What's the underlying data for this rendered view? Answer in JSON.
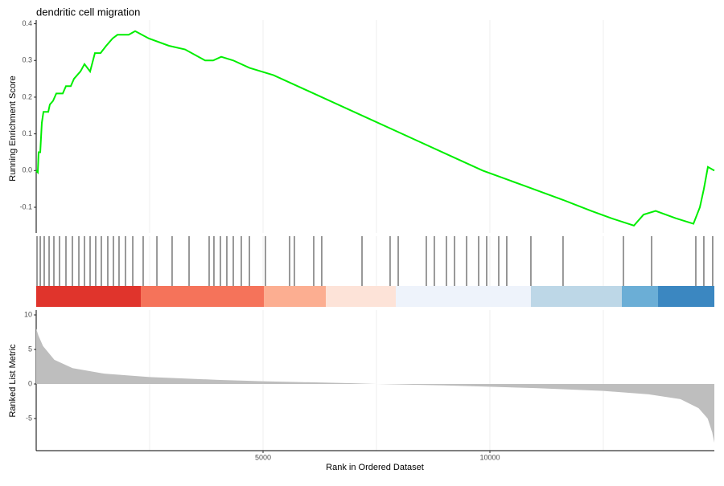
{
  "chart_data": [
    {
      "type": "line",
      "title": "dendritic cell migration",
      "ylabel": "Running Enrichment Score",
      "color": "#00ee00",
      "x": [
        0,
        35,
        53,
        89,
        124,
        160,
        266,
        301,
        372,
        443,
        585,
        656,
        762,
        833,
        975,
        1064,
        1188,
        1294,
        1418,
        1543,
        1684,
        1791,
        2039,
        2181,
        2482,
        2926,
        3280,
        3723,
        3901,
        4078,
        4344,
        4699,
        5230,
        6294,
        7181,
        8067,
        9131,
        9840,
        10727,
        11613,
        12234,
        12677,
        13174,
        13387,
        13653,
        14096,
        14486,
        14628,
        14716,
        14805,
        14947
      ],
      "values": [
        0,
        -0.005,
        0.05,
        0.05,
        0.13,
        0.16,
        0.16,
        0.18,
        0.19,
        0.21,
        0.21,
        0.23,
        0.23,
        0.25,
        0.27,
        0.29,
        0.27,
        0.32,
        0.32,
        0.34,
        0.36,
        0.37,
        0.37,
        0.38,
        0.36,
        0.34,
        0.33,
        0.3,
        0.3,
        0.31,
        0.3,
        0.28,
        0.26,
        0.2,
        0.15,
        0.1,
        0.04,
        0,
        -0.04,
        -0.08,
        -0.11,
        -0.13,
        -0.15,
        -0.12,
        -0.11,
        -0.13,
        -0.145,
        -0.1,
        -0.05,
        0.01,
        0
      ],
      "xlim": [
        0,
        14947
      ],
      "ylim": [
        -0.17,
        0.41
      ],
      "yticks": [
        -0.1,
        {
          "value": 0,
          "label": "0.0"
        },
        0.1,
        0.2,
        0.3,
        0.4
      ],
      "xgrid": [
        2500,
        5000,
        7500,
        10000,
        12500
      ]
    },
    {
      "type": "rug",
      "color": "#000000",
      "hits": [
        18,
        89,
        177,
        284,
        390,
        514,
        656,
        798,
        940,
        1064,
        1188,
        1312,
        1436,
        1578,
        1702,
        1826,
        1968,
        2128,
        2358,
        2660,
        2996,
        3369,
        3812,
        3918,
        4060,
        4202,
        4344,
        4521,
        4699,
        5053,
        5585,
        5691,
        6117,
        6294,
        7181,
        7801,
        7979,
        8599,
        8776,
        9042,
        9220,
        9486,
        9752,
        9929,
        10195,
        10372,
        10904,
        11613,
        12943,
        13564,
        14539,
        14716,
        14911
      ],
      "bands": [
        {
          "start": 0,
          "end": 2305,
          "color": "#e0342c"
        },
        {
          "start": 2305,
          "end": 5018,
          "color": "#f5735a"
        },
        {
          "start": 5018,
          "end": 6383,
          "color": "#fcae91"
        },
        {
          "start": 6383,
          "end": 7926,
          "color": "#fde3d8"
        },
        {
          "start": 7926,
          "end": 10904,
          "color": "#eef3fb"
        },
        {
          "start": 10904,
          "end": 12908,
          "color": "#bdd7e7"
        },
        {
          "start": 12908,
          "end": 13706,
          "color": "#6baed6"
        },
        {
          "start": 13706,
          "end": 14947,
          "color": "#3b87c1"
        }
      ]
    },
    {
      "type": "area",
      "ylabel": "Ranked List Metric",
      "xlabel": "Rank in Ordered Dataset",
      "color": "#bebebe",
      "x": [
        0,
        50,
        150,
        400,
        800,
        1500,
        2500,
        4000,
        5000,
        7000,
        7500,
        9000,
        11000,
        12500,
        13500,
        14200,
        14600,
        14800,
        14900,
        14947
      ],
      "values": [
        8,
        7,
        5.5,
        3.5,
        2.3,
        1.5,
        1,
        0.6,
        0.4,
        0.1,
        0,
        -0.2,
        -0.6,
        -1,
        -1.5,
        -2.2,
        -3.5,
        -5,
        -7,
        -8.5
      ],
      "ylim": [
        -9.65,
        10.7
      ],
      "yticks": [
        -5,
        0,
        5,
        10
      ],
      "xticks": [
        5000,
        10000
      ]
    }
  ]
}
